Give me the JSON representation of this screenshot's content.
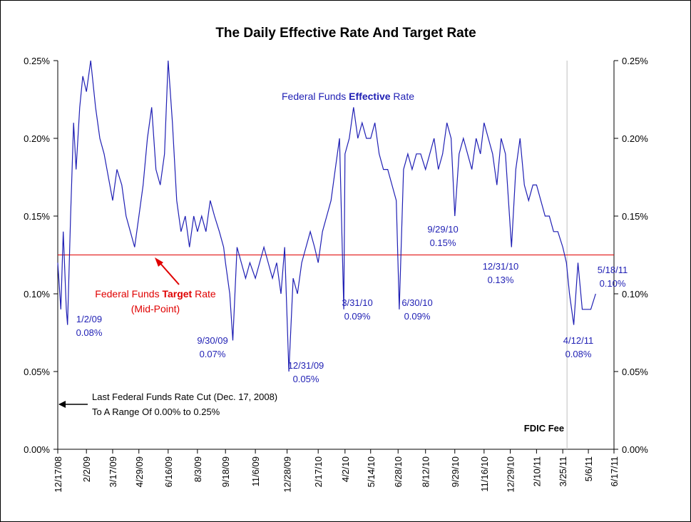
{
  "chart_data": {
    "type": "line",
    "title": "The Daily Effective Rate And Target Rate",
    "ylim": [
      0,
      0.25
    ],
    "y_ticks": [
      "0.00%",
      "0.05%",
      "0.10%",
      "0.15%",
      "0.20%",
      "0.25%"
    ],
    "y_tick_values": [
      0,
      0.05,
      0.1,
      0.15,
      0.2,
      0.25
    ],
    "x_ticks": [
      "12/17/08",
      "2/2/09",
      "3/17/09",
      "4/29/09",
      "6/16/09",
      "8/3/09",
      "9/18/09",
      "11/6/09",
      "12/28/09",
      "2/17/10",
      "4/2/10",
      "5/14/10",
      "6/28/10",
      "8/12/10",
      "9/29/10",
      "11/16/10",
      "12/29/10",
      "2/10/11",
      "3/25/11",
      "5/6/11",
      "6/17/11"
    ],
    "grid": false,
    "series": [
      {
        "name": "Federal Funds Effective Rate",
        "color": "#1f1fb4",
        "x": [
          "12/17/08",
          "12/22/08",
          "12/26/08",
          "12/31/08",
          "1/2/09",
          "1/7/09",
          "1/12/09",
          "1/16/09",
          "1/22/09",
          "1/27/09",
          "2/2/09",
          "2/9/09",
          "2/17/09",
          "2/24/09",
          "3/3/09",
          "3/17/09",
          "3/24/09",
          "4/1/09",
          "4/8/09",
          "4/15/09",
          "4/22/09",
          "4/29/09",
          "5/6/09",
          "5/13/09",
          "5/20/09",
          "5/27/09",
          "6/3/09",
          "6/10/09",
          "6/16/09",
          "6/23/09",
          "6/30/09",
          "7/7/09",
          "7/14/09",
          "7/21/09",
          "7/28/09",
          "8/3/09",
          "8/10/09",
          "8/17/09",
          "8/24/09",
          "8/31/09",
          "9/8/09",
          "9/15/09",
          "9/18/09",
          "9/25/09",
          "9/30/09",
          "10/7/09",
          "10/14/09",
          "10/21/09",
          "10/28/09",
          "11/6/09",
          "11/13/09",
          "11/20/09",
          "11/27/09",
          "12/4/09",
          "12/11/09",
          "12/18/09",
          "12/24/09",
          "12/31/09",
          "1/7/10",
          "1/14/10",
          "1/21/10",
          "1/28/10",
          "2/4/10",
          "2/11/10",
          "2/17/10",
          "2/24/10",
          "3/3/10",
          "3/10/10",
          "3/17/10",
          "3/24/10",
          "3/31/10",
          "4/2/10",
          "4/9/10",
          "4/16/10",
          "4/23/10",
          "4/30/10",
          "5/7/10",
          "5/14/10",
          "5/21/10",
          "5/28/10",
          "6/4/10",
          "6/11/10",
          "6/18/10",
          "6/25/10",
          "6/30/10",
          "7/7/10",
          "7/14/10",
          "7/21/10",
          "7/28/10",
          "8/4/10",
          "8/12/10",
          "8/19/10",
          "8/26/10",
          "9/2/10",
          "9/9/10",
          "9/16/10",
          "9/23/10",
          "9/29/10",
          "10/6/10",
          "10/13/10",
          "10/20/10",
          "10/27/10",
          "11/3/10",
          "11/10/10",
          "11/16/10",
          "11/23/10",
          "11/30/10",
          "12/7/10",
          "12/14/10",
          "12/21/10",
          "12/31/10",
          "1/7/11",
          "1/14/11",
          "1/21/11",
          "1/28/11",
          "2/4/11",
          "2/10/11",
          "2/17/11",
          "2/24/11",
          "3/3/11",
          "3/10/11",
          "3/17/11",
          "3/25/11",
          "3/31/11",
          "4/5/11",
          "4/12/11",
          "4/19/11",
          "4/26/11",
          "5/3/11",
          "5/10/11",
          "5/18/11"
        ],
        "values": [
          0.12,
          0.09,
          0.14,
          0.09,
          0.08,
          0.15,
          0.21,
          0.18,
          0.22,
          0.24,
          0.23,
          0.25,
          0.22,
          0.2,
          0.19,
          0.16,
          0.18,
          0.17,
          0.15,
          0.14,
          0.13,
          0.15,
          0.17,
          0.2,
          0.22,
          0.18,
          0.17,
          0.19,
          0.25,
          0.21,
          0.16,
          0.14,
          0.15,
          0.13,
          0.15,
          0.14,
          0.15,
          0.14,
          0.16,
          0.15,
          0.14,
          0.13,
          0.12,
          0.1,
          0.07,
          0.13,
          0.12,
          0.11,
          0.12,
          0.11,
          0.12,
          0.13,
          0.12,
          0.11,
          0.12,
          0.1,
          0.13,
          0.05,
          0.11,
          0.1,
          0.12,
          0.13,
          0.14,
          0.13,
          0.12,
          0.14,
          0.15,
          0.16,
          0.18,
          0.2,
          0.09,
          0.19,
          0.2,
          0.22,
          0.2,
          0.21,
          0.2,
          0.2,
          0.21,
          0.19,
          0.18,
          0.18,
          0.17,
          0.16,
          0.09,
          0.18,
          0.19,
          0.18,
          0.19,
          0.19,
          0.18,
          0.19,
          0.2,
          0.18,
          0.19,
          0.21,
          0.2,
          0.15,
          0.19,
          0.2,
          0.19,
          0.18,
          0.2,
          0.19,
          0.21,
          0.2,
          0.19,
          0.17,
          0.2,
          0.19,
          0.13,
          0.18,
          0.2,
          0.17,
          0.16,
          0.17,
          0.17,
          0.16,
          0.15,
          0.15,
          0.14,
          0.14,
          0.13,
          0.12,
          0.1,
          0.08,
          0.12,
          0.09,
          0.09,
          0.09,
          0.1
        ]
      },
      {
        "name": "Federal Funds Target Rate (Mid-Point)",
        "color": "#e00000",
        "x": [
          "12/17/08",
          "6/17/11"
        ],
        "values": [
          0.125,
          0.125
        ]
      }
    ],
    "annotations": [
      {
        "date_label": "1/2/09",
        "value_label": "0.08%"
      },
      {
        "date_label": "9/30/09",
        "value_label": "0.07%"
      },
      {
        "date_label": "12/31/09",
        "value_label": "0.05%"
      },
      {
        "date_label": "3/31/10",
        "value_label": "0.09%"
      },
      {
        "date_label": "6/30/10",
        "value_label": "0.09%"
      },
      {
        "date_label": "9/29/10",
        "value_label": "0.15%"
      },
      {
        "date_label": "12/31/10",
        "value_label": "0.13%"
      },
      {
        "date_label": "4/12/11",
        "value_label": "0.08%"
      },
      {
        "date_label": "5/18/11",
        "value_label": "0.10%"
      }
    ],
    "labels": {
      "effective_pre": "Federal Funds ",
      "effective_bold": "Effective",
      "effective_post": " Rate",
      "target_pre": "Federal Funds ",
      "target_bold": "Target",
      "target_post": " Rate",
      "target_sub": "(Mid-Point)",
      "cut_line1": "Last Federal Funds Rate Cut (Dec. 17, 2008)",
      "cut_line2": "To A Range Of 0.00% to 0.25%",
      "fdic": "FDIC Fee"
    },
    "fdic_date": "4/1/11"
  }
}
